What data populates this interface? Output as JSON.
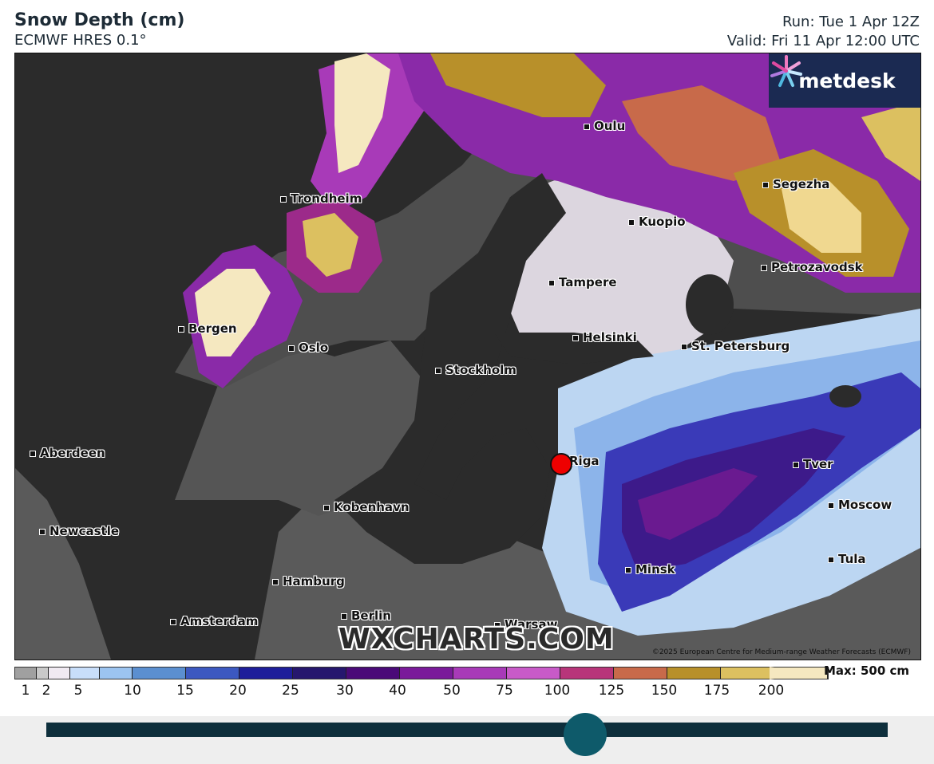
{
  "header": {
    "title": "Snow Depth (cm)",
    "subtitle": "ECMWF HRES 0.1°",
    "run": "Run: Tue 1 Apr 12Z",
    "valid": "Valid: Fri 11 Apr 12:00 UTC"
  },
  "logo": {
    "text": "metdesk",
    "icon": "metdesk-starburst-icon"
  },
  "cities": [
    {
      "id": "oulu",
      "name": "Oulu"
    },
    {
      "id": "trondheim",
      "name": "Trondheim"
    },
    {
      "id": "segezha",
      "name": "Segezha"
    },
    {
      "id": "kuopio",
      "name": "Kuopio"
    },
    {
      "id": "petrozavodsk",
      "name": "Petrozavodsk"
    },
    {
      "id": "tampere",
      "name": "Tampere"
    },
    {
      "id": "bergen",
      "name": "Bergen"
    },
    {
      "id": "helsinki",
      "name": "Helsinki"
    },
    {
      "id": "oslo",
      "name": "Oslo"
    },
    {
      "id": "st-petersburg",
      "name": "St. Petersburg"
    },
    {
      "id": "stockholm",
      "name": "Stockholm"
    },
    {
      "id": "aberdeen",
      "name": "Aberdeen"
    },
    {
      "id": "riga",
      "name": "Riga"
    },
    {
      "id": "tver",
      "name": "Tver"
    },
    {
      "id": "moscow",
      "name": "Moscow"
    },
    {
      "id": "kobenhavn",
      "name": "Kobenhavn"
    },
    {
      "id": "newcastle",
      "name": "Newcastle"
    },
    {
      "id": "tula",
      "name": "Tula"
    },
    {
      "id": "minsk",
      "name": "Minsk"
    },
    {
      "id": "hamburg",
      "name": "Hamburg"
    },
    {
      "id": "berlin",
      "name": "Berlin"
    },
    {
      "id": "amsterdam",
      "name": "Amsterdam"
    },
    {
      "id": "warsaw",
      "name": "Warsaw"
    }
  ],
  "selected_location": "Riga",
  "watermark": "WXCHARTS.COM",
  "copyright": "©2025 European Centre for Medium-range Weather Forecasts (ECMWF)",
  "legend": {
    "ticks": [
      "1",
      "2",
      "5",
      "10",
      "15",
      "20",
      "25",
      "30",
      "40",
      "50",
      "75",
      "100",
      "125",
      "150",
      "175",
      "200"
    ],
    "colors": [
      "#a0a0a0",
      "#c9c9c9",
      "#f0eaf2",
      "#c8defa",
      "#9cc4f0",
      "#5b8fd0",
      "#3c58c0",
      "#1e1e9a",
      "#26176e",
      "#4a0a78",
      "#7a1a9a",
      "#a83ab8",
      "#c85ac8",
      "#b8357a",
      "#c86a4a",
      "#b8902a",
      "#dcc060",
      "#f5e8c0"
    ],
    "max_label": "Max: 500 cm"
  },
  "slider": {
    "position": 0.64
  }
}
